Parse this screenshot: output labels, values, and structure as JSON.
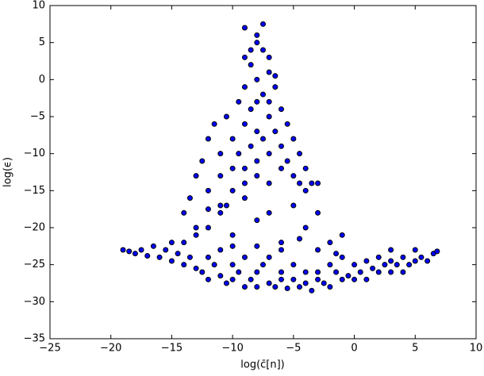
{
  "chart_data": {
    "type": "scatter",
    "xlabel": "log(c̄[n])",
    "ylabel": "log(ϵ)",
    "color": "#0000ff",
    "edgecolor": "#000000",
    "xlim": [
      -25,
      10
    ],
    "ylim": [
      -35,
      10
    ],
    "xticks": [
      {
        "value": -25,
        "label": "−25"
      },
      {
        "value": -20,
        "label": "−20"
      },
      {
        "value": -15,
        "label": "−15"
      },
      {
        "value": -10,
        "label": "−10"
      },
      {
        "value": -5,
        "label": "−5"
      },
      0,
      5,
      10
    ],
    "yticks": [
      {
        "value": -35,
        "label": "−35"
      },
      {
        "value": -30,
        "label": "−30"
      },
      {
        "value": -25,
        "label": "−25"
      },
      {
        "value": -20,
        "label": "−20"
      },
      {
        "value": -15,
        "label": "−15"
      },
      {
        "value": -10,
        "label": "−10"
      },
      {
        "value": -5,
        "label": "−5"
      },
      0,
      5,
      10
    ],
    "x": [
      -19,
      -18.5,
      -18,
      -17.5,
      -17,
      -16.5,
      -16,
      -15.5,
      -15,
      -15,
      -14.5,
      -14,
      -14,
      -13.5,
      -13,
      -13,
      -12.5,
      -12,
      -12,
      -11.5,
      -11,
      -11,
      -10.5,
      -10,
      -10,
      -9.5,
      -9,
      -9,
      -8.5,
      -8,
      -8,
      -7.5,
      -7,
      -7,
      -6.5,
      -6,
      -6,
      -5.5,
      -5,
      -5,
      -4.5,
      -4,
      -4,
      -3.5,
      -3,
      -3,
      -2.5,
      -2,
      -2,
      -1.5,
      -1,
      -1,
      -0.5,
      0,
      0,
      0.5,
      1,
      1,
      1.5,
      2,
      2,
      2.5,
      3,
      3,
      3.5,
      4,
      4,
      4.5,
      5,
      5.5,
      6,
      6.5,
      6.8,
      5,
      3,
      -12,
      -10,
      -8,
      -6,
      -4,
      -2,
      -1,
      -3,
      -5,
      -7,
      -9,
      -11,
      -14,
      -13,
      -6,
      -8,
      -3,
      -1.5,
      -4.5,
      -10,
      -13,
      -12.5,
      -12,
      -12,
      -11.5,
      -11,
      -11,
      -10.5,
      -10,
      -10,
      -10,
      -9.5,
      -9.5,
      -9,
      -9,
      -9,
      -9,
      -8.5,
      -8.5,
      -8.5,
      -8,
      -8,
      -8,
      -8,
      -8,
      -7.5,
      -7.5,
      -7.5,
      -7,
      -7,
      -7,
      -7,
      -6.5,
      -6.5,
      -6,
      -6,
      -6,
      -5.5,
      -5.5,
      -5,
      -5,
      -4.5,
      -4.5,
      -4,
      -4,
      -3.5,
      -3,
      -11,
      -12,
      -13.5,
      -10.5,
      -9,
      -7.5,
      -8,
      -8,
      -8.5,
      -7,
      -6.5,
      -9,
      -7
    ],
    "values": [
      -23,
      -23.2,
      -23.5,
      -23,
      -23.8,
      -22.5,
      -24,
      -23,
      -22,
      -24.5,
      -23.5,
      -25,
      -22,
      -24,
      -25.5,
      -21,
      -26,
      -24,
      -27,
      -25,
      -26.5,
      -23,
      -27.5,
      -25,
      -27,
      -26,
      -28,
      -24,
      -27,
      -26,
      -28,
      -25,
      -27.5,
      -24,
      -28,
      -26,
      -27,
      -28.2,
      -25,
      -27,
      -28,
      -26,
      -27.5,
      -28.5,
      -26,
      -27,
      -27.5,
      -25,
      -28,
      -26,
      -27,
      -24,
      -26.5,
      -25,
      -27,
      -26,
      -24.5,
      -27,
      -25.5,
      -26,
      -24,
      -25,
      -26,
      -24.5,
      -25,
      -24,
      -26,
      -25,
      -24.5,
      -24,
      -24.5,
      -23.5,
      -23.2,
      -23,
      -23,
      -20,
      -21,
      -19,
      -22,
      -20,
      -22,
      -21,
      -18,
      -17,
      -18,
      -16,
      -17,
      -18,
      -20,
      -23,
      -22.5,
      -23,
      -23.5,
      -21.5,
      -22.5,
      -13,
      -11,
      -8,
      -15,
      -6,
      -10,
      -13,
      -5,
      -8,
      -12,
      -15,
      -3,
      -10,
      -1,
      -6,
      -12,
      -14,
      2,
      -4,
      -9,
      0,
      -3,
      -7,
      -11,
      -13,
      4,
      -2,
      -8,
      1,
      -5,
      -10,
      -14,
      -1,
      -7,
      -4,
      -9,
      -12,
      -6,
      -11,
      -8,
      -13,
      -10,
      -14,
      -12,
      -15,
      -14,
      -14,
      -18,
      -17.5,
      -16,
      -17,
      7,
      7.5,
      5,
      6,
      4,
      3,
      0.5,
      3,
      -3
    ]
  }
}
